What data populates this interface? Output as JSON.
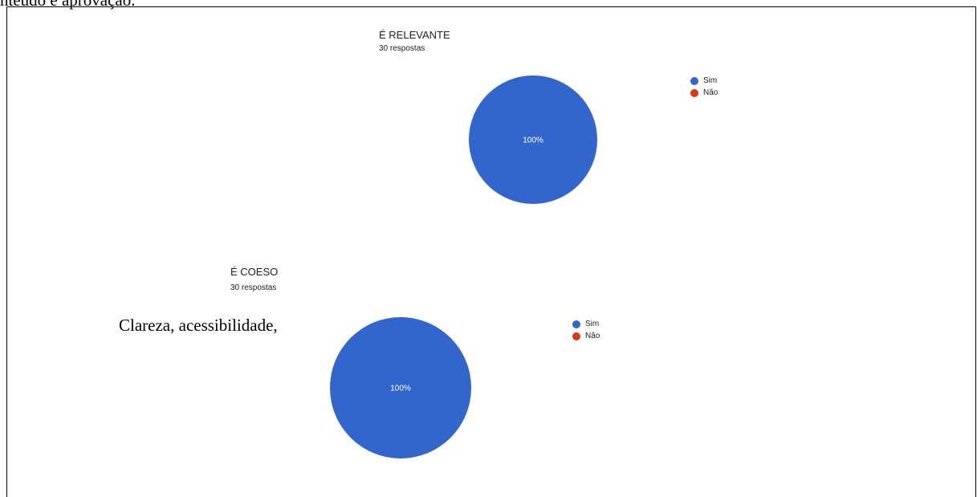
{
  "document": {
    "top_text_fragment": "nteúdo e aprovação.",
    "body_text": "Clareza, acessibilidade,"
  },
  "colors": {
    "sim": "#3366cc",
    "nao": "#dc3912"
  },
  "chart_data": [
    {
      "type": "pie",
      "title": "É RELEVANTE",
      "subtitle": "30 respostas",
      "categories": [
        "Sim",
        "Não"
      ],
      "values": [
        100,
        0
      ],
      "data_labels": [
        "100%"
      ],
      "legend_position": "right"
    },
    {
      "type": "pie",
      "title": "É COESO",
      "subtitle": "30 respostas",
      "categories": [
        "Sim",
        "Não"
      ],
      "values": [
        100,
        0
      ],
      "data_labels": [
        "100%"
      ],
      "legend_position": "right"
    }
  ]
}
